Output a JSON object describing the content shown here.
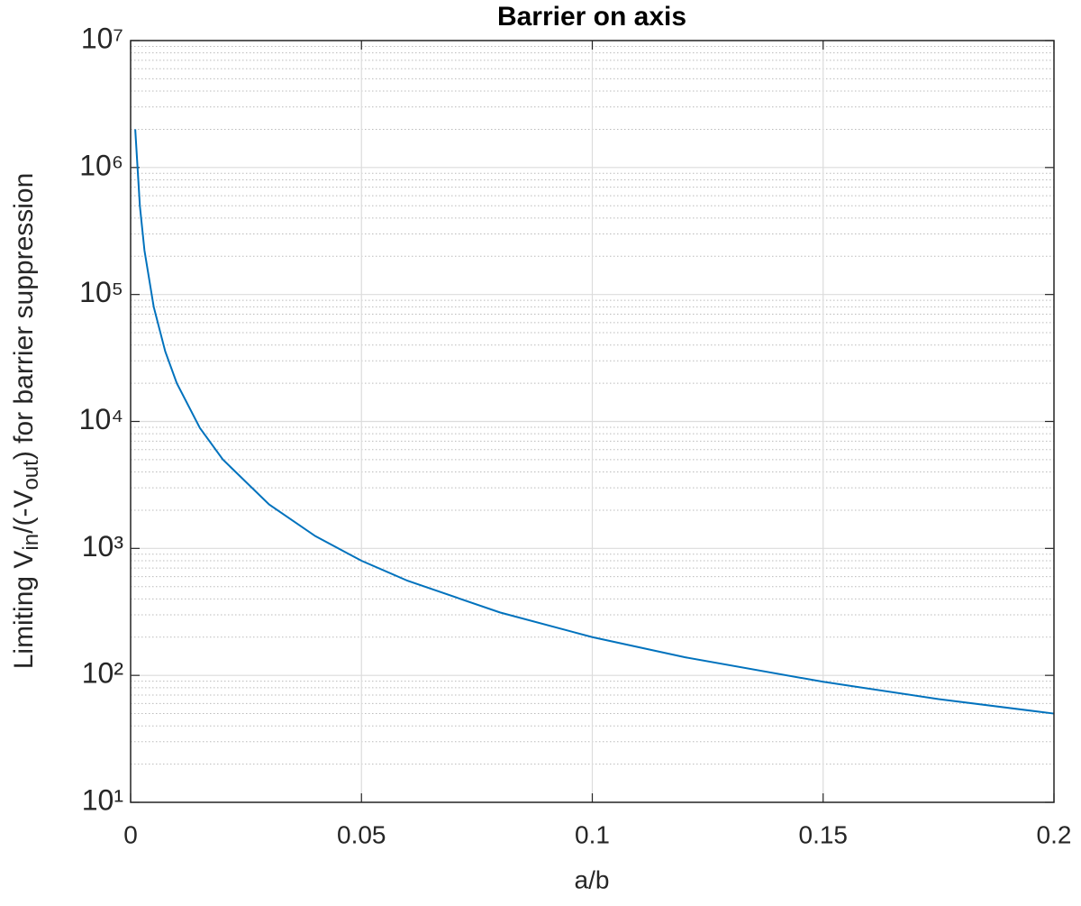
{
  "chart_data": {
    "type": "line",
    "title": "Barrier on axis",
    "xlabel": "a/b",
    "ylabel": [
      {
        "text": "Limiting V",
        "sub": false
      },
      {
        "text": "in",
        "sub": true
      },
      {
        "text": "/(-V",
        "sub": false
      },
      {
        "text": "out",
        "sub": true
      },
      {
        "text": ") for barrier suppression",
        "sub": false
      }
    ],
    "x": [
      0.001,
      0.002,
      0.003,
      0.005,
      0.0075,
      0.01,
      0.015,
      0.02,
      0.03,
      0.04,
      0.05,
      0.06,
      0.08,
      0.1,
      0.12,
      0.15,
      0.175,
      0.2
    ],
    "series": [
      {
        "color": "#0072bd",
        "values": [
          2000000,
          500000,
          222000,
          80000,
          35600,
          20000,
          8890,
          5000,
          2220,
          1250,
          800,
          556,
          313,
          200,
          139,
          89,
          65,
          50
        ]
      }
    ],
    "xlim": [
      0,
      0.2
    ],
    "xticks": [
      0,
      0.05,
      0.1,
      0.15,
      0.2
    ],
    "ylim": [
      10,
      10000000
    ],
    "ylog": true,
    "yticks": [
      {
        "value": 10,
        "label": "10¹"
      },
      {
        "value": 100,
        "label": "10²"
      },
      {
        "value": 1000,
        "label": "10³"
      },
      {
        "value": 10000,
        "label": "10⁴"
      },
      {
        "value": 100000,
        "label": "10⁵"
      },
      {
        "value": 1000000,
        "label": "10⁶"
      },
      {
        "value": 10000000,
        "label": "10⁷"
      }
    ],
    "yminor_grid": [
      20,
      30,
      40,
      50,
      60,
      70,
      80,
      90,
      200,
      300,
      400,
      500,
      600,
      700,
      800,
      900,
      2000,
      3000,
      4000,
      5000,
      6000,
      7000,
      8000,
      9000,
      20000,
      30000,
      40000,
      50000,
      60000,
      70000,
      80000,
      90000,
      200000,
      300000,
      400000,
      500000,
      600000,
      700000,
      800000,
      900000,
      2000000,
      3000000,
      4000000,
      5000000,
      6000000,
      7000000,
      8000000,
      9000000
    ],
    "grid": true
  }
}
